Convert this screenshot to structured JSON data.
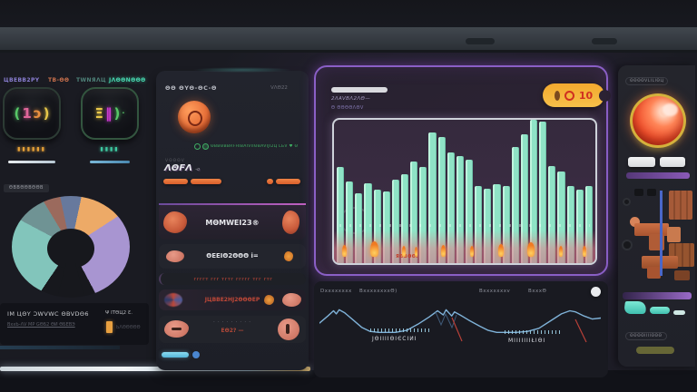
{
  "colors": {
    "background": "#17181d",
    "panel": "#22242d",
    "accent_purple": "#8a5fc6",
    "accent_mint": "#8fe3c6",
    "accent_orange": "#e8713a",
    "accent_teal": "#46d6ae",
    "accent_red": "#c04838",
    "accent_cyan": "#6ac8e8",
    "badge_gold": "#f6c04a"
  },
  "left": {
    "labels": [
      {
        "text": "ЦBEBB2PY"
      },
      {
        "text": "TB-ΘΘ"
      },
      {
        "text": "TWNЯΛЦ"
      },
      {
        "text": "JΛΘΘNΘΘΘ"
      }
    ],
    "stat_cards": [
      {
        "glyphs": [
          "(",
          "1",
          "ɔ",
          ")"
        ],
        "value_blocks": "▮▮▮▮▮▮"
      },
      {
        "glyphs": [
          "Ξ",
          "‖",
          ")",
          "·"
        ],
        "value_blocks": "▮▮▮▮"
      }
    ],
    "gauge": {
      "label": "ΘΒΒΘΘΒΘΘΒ",
      "footer_line1": "IM ЦΘY ƆWVWC ΘBVDΘ6",
      "footer_line2": "BxxЬ-ΛV MP GΘБ2 ΘИ ΘБEВЭ",
      "footer_right": "Ψ ITΘЦ2 Ɛ.",
      "legend_label": "ЬΛΘΘΘΘΘ"
    }
  },
  "mid_panel": {
    "title": "ΘΘ ΘYΘ-ΘC-Θ",
    "corner_label": "VΛΘ22",
    "code_line": "ΘBBΘBBRFHIBAIVIIΘBAVIJI2Ц LЬV ♥ Θ",
    "sub_label": "VΘΘΘV",
    "name": "ΛΘFΛ",
    "name_suffix": "-ο",
    "rows": [
      {
        "text": "MΘMWEI2З®"
      },
      {
        "text": "ΘEEIΘ2ΘΘΘ i="
      },
      {
        "text": "ггггт ггг тгтг ггггг тгг гтг"
      },
      {
        "text": "JЦBBE2HJ2ΘΘΘEP"
      },
      {
        "text": "EΘ2? —",
        "dots": "· · · · · · · · ·"
      }
    ]
  },
  "center_panel": {
    "subtitle1": "2ΛAVBΛ2ΛΘ—",
    "subtitle2": "Θ ΘΘΘΘΛΘV",
    "badge_count": "10",
    "band_label": "ЯΘВΘΘι",
    "footer_labels": [
      "Dxxxxxxxx",
      "BxxxxxxxxΘ)",
      "Bxxxxxxxv",
      "BxxxΘ"
    ],
    "tick_label_1": "JΘIIIIΘIЄCIИI",
    "tick_label_2": "MIIIIIIIŁIΘI"
  },
  "right_panel": {
    "top_label": "ΘΘΘΘVLILIΘЦ",
    "bottom_label": "ΘΘΘΘIIIIΘΘΘ"
  },
  "chart_data": [
    {
      "type": "bar",
      "name": "activity",
      "title": "",
      "values": [
        67,
        57,
        49,
        56,
        51,
        50,
        58,
        62,
        71,
        67,
        91,
        88,
        77,
        75,
        72,
        54,
        52,
        55,
        54,
        81,
        90,
        100,
        99,
        68,
        64,
        54,
        51,
        54
      ],
      "ylim": [
        0,
        100
      ],
      "color": "#8fe3c6",
      "event_markers": [
        {
          "x": 3,
          "w": 5
        },
        {
          "x": 14,
          "w": 9
        },
        {
          "x": 26,
          "w": 4
        },
        {
          "x": 31,
          "w": 3
        },
        {
          "x": 41,
          "w": 5
        },
        {
          "x": 52,
          "w": 4
        },
        {
          "x": 63,
          "w": 6
        },
        {
          "x": 74,
          "w": 8
        },
        {
          "x": 86,
          "w": 4
        },
        {
          "x": 95,
          "w": 4
        }
      ]
    },
    {
      "type": "pie",
      "name": "distribution",
      "style": "donut-gauge",
      "segments": [
        {
          "label": "slate",
          "color": "#66799f",
          "sweep": 12
        },
        {
          "label": "orange",
          "color": "#f0a963",
          "sweep": 45
        },
        {
          "label": "purple",
          "color": "#a995d4",
          "sweep": 95
        },
        {
          "label": "gap",
          "color": "#17181d",
          "sweep": 62
        },
        {
          "label": "teal",
          "color": "#7fc6bb",
          "sweep": 84
        },
        {
          "label": "gray-teal",
          "color": "#6e9394",
          "sweep": 31
        },
        {
          "label": "brown",
          "color": "#9d6a5c",
          "sweep": 19
        },
        {
          "label": "slate2",
          "color": "#66799f",
          "sweep": 12
        }
      ]
    },
    {
      "type": "line",
      "name": "trend",
      "color": "#7fb2d8",
      "points": [
        [
          0,
          16
        ],
        [
          3,
          9
        ],
        [
          5,
          4
        ],
        [
          6,
          7
        ],
        [
          7,
          3
        ],
        [
          9,
          6
        ],
        [
          12,
          13
        ],
        [
          15,
          20
        ],
        [
          18,
          24
        ],
        [
          21,
          25
        ],
        [
          27,
          25
        ],
        [
          31,
          23
        ],
        [
          35,
          17
        ],
        [
          39,
          10
        ],
        [
          42,
          4
        ],
        [
          44,
          8
        ],
        [
          45,
          3
        ],
        [
          47,
          9
        ],
        [
          48,
          5
        ],
        [
          50,
          8
        ],
        [
          53,
          13
        ],
        [
          57,
          19
        ],
        [
          60,
          23
        ],
        [
          63,
          25
        ],
        [
          70,
          25
        ],
        [
          74,
          24
        ],
        [
          78,
          21
        ],
        [
          82,
          14
        ],
        [
          86,
          7
        ],
        [
          89,
          4
        ],
        [
          91,
          5
        ],
        [
          94,
          9
        ],
        [
          97,
          12
        ],
        [
          100,
          11
        ]
      ]
    }
  ]
}
